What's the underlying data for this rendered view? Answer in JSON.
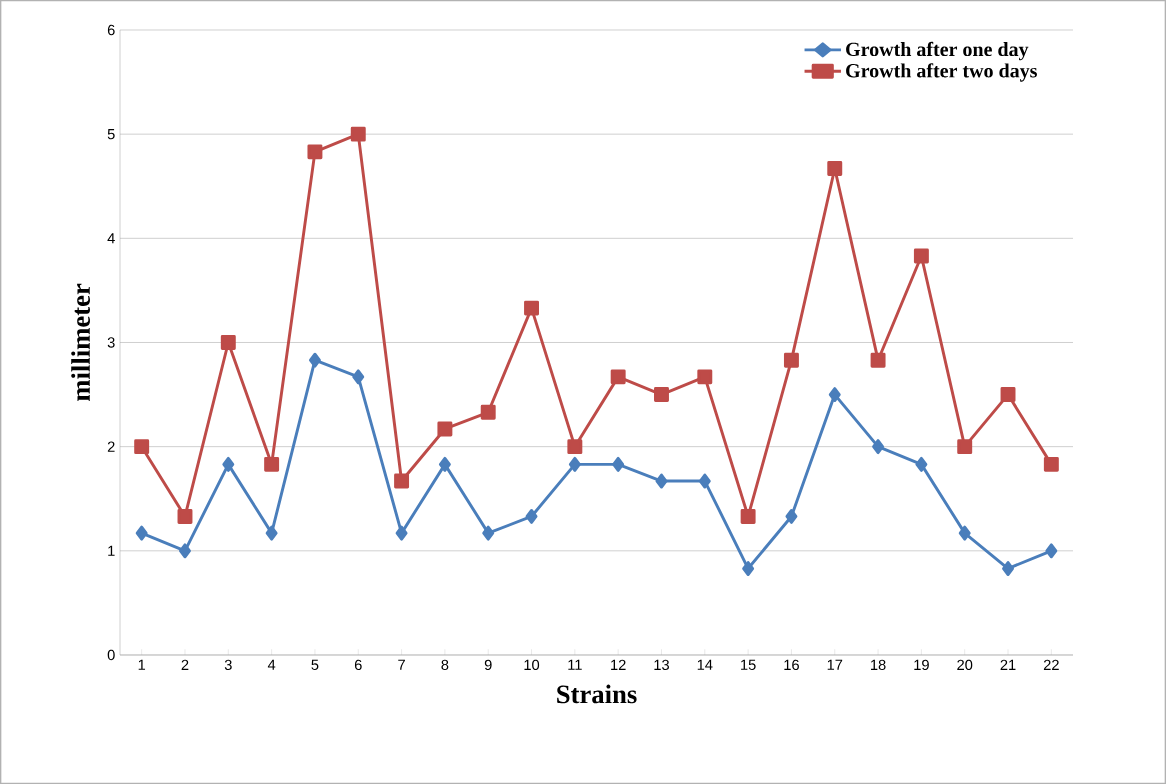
{
  "chart_data": {
    "type": "line",
    "xlabel": "Strains",
    "ylabel": "millimeter",
    "categories": [
      "1",
      "2",
      "3",
      "4",
      "5",
      "6",
      "7",
      "8",
      "9",
      "10",
      "11",
      "12",
      "13",
      "14",
      "15",
      "16",
      "17",
      "18",
      "19",
      "20",
      "21",
      "22"
    ],
    "series": [
      {
        "name": "Growth after one day",
        "color": "#4a7ebb",
        "marker": "diamond",
        "values": [
          1.17,
          1.0,
          1.83,
          1.17,
          2.83,
          2.67,
          1.17,
          1.83,
          1.17,
          1.33,
          1.83,
          1.83,
          1.67,
          1.67,
          0.83,
          1.33,
          2.5,
          2.0,
          1.83,
          1.17,
          0.83,
          1.0
        ]
      },
      {
        "name": "Growth after two days",
        "color": "#be4b48",
        "marker": "square",
        "values": [
          2.0,
          1.33,
          3.0,
          1.83,
          4.83,
          5.0,
          1.67,
          2.17,
          2.33,
          3.33,
          2.0,
          2.67,
          2.5,
          2.67,
          1.33,
          2.83,
          4.67,
          2.83,
          3.83,
          2.0,
          2.5,
          1.83
        ]
      }
    ],
    "ylim": [
      0,
      6
    ],
    "yticks": [
      0,
      1,
      2,
      3,
      4,
      5,
      6
    ],
    "grid": "y",
    "legend": "top right",
    "line_style": "solid"
  }
}
